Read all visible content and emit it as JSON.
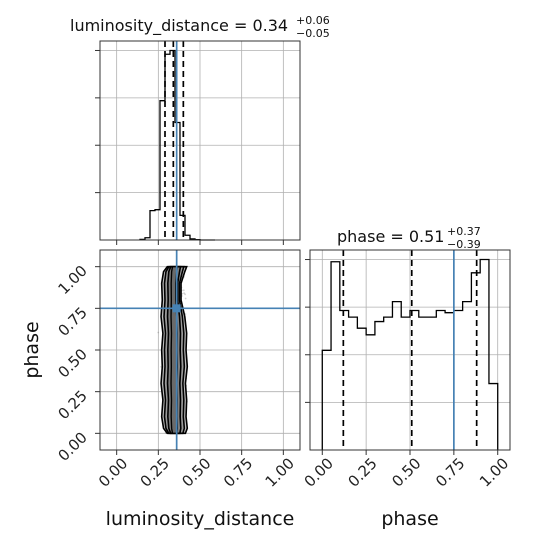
{
  "chart_data": {
    "type": "corner",
    "parameters": [
      "luminosity_distance",
      "phase"
    ],
    "truths": {
      "luminosity_distance": 0.36,
      "phase": 0.75
    },
    "truth_color": "#4682b4",
    "line_color": "#000000",
    "panels": [
      {
        "panel": "hist-luminosity_distance",
        "type": "step-histogram",
        "param": "luminosity_distance",
        "title": {
          "main": "luminosity_distance = 0.34",
          "sup": "+0.06",
          "sub": "−0.05"
        },
        "xlim": [
          -0.1,
          1.1
        ],
        "bin_edges": [
          0.14,
          0.17,
          0.2,
          0.23,
          0.26,
          0.29,
          0.32,
          0.35,
          0.38,
          0.41,
          0.44,
          0.47,
          0.5,
          0.53,
          0.56,
          0.59
        ],
        "counts": [
          0.003,
          0.012,
          0.155,
          0.16,
          0.735,
          0.98,
          1.0,
          0.62,
          0.13,
          0.025,
          0.006,
          0.002,
          0.0,
          0.0,
          0.0
        ],
        "quantiles": [
          0.29,
          0.34,
          0.4
        ],
        "x_ticks": [
          0.0,
          0.25,
          0.5,
          0.75,
          1.0
        ],
        "grid": true
      },
      {
        "panel": "2d-luminosity_distance-phase",
        "type": "contour-2d",
        "x_param": "luminosity_distance",
        "y_param": "phase",
        "xlim": [
          -0.1,
          1.1
        ],
        "ylim": [
          -0.1,
          1.1
        ],
        "x_ticks": [
          "0.00",
          "0.25",
          "0.50",
          "0.75",
          "1.00"
        ],
        "y_ticks": [
          "0.00",
          "0.25",
          "0.50",
          "0.75",
          "1.00"
        ],
        "xlabel": "luminosity_distance",
        "ylabel": "phase",
        "grid": true
      },
      {
        "panel": "hist-phase",
        "type": "step-histogram",
        "param": "phase",
        "title": {
          "main": "phase = 0.51",
          "sup": "+0.37",
          "sub": "−0.39"
        },
        "xlim": [
          -0.07,
          1.07
        ],
        "bin_edges": [
          0.0,
          0.05,
          0.1,
          0.15,
          0.2,
          0.25,
          0.3,
          0.35,
          0.4,
          0.45,
          0.5,
          0.55,
          0.6,
          0.65,
          0.7,
          0.75,
          0.8,
          0.85,
          0.9,
          0.95,
          1.0
        ],
        "counts": [
          0.45,
          0.85,
          0.63,
          0.6,
          0.55,
          0.52,
          0.58,
          0.6,
          0.67,
          0.6,
          0.63,
          0.6,
          0.6,
          0.63,
          0.62,
          0.63,
          0.67,
          0.8,
          0.86,
          0.3
        ],
        "quantiles": [
          0.12,
          0.51,
          0.88
        ],
        "x_ticks": [
          "0.00",
          "0.25",
          "0.50",
          "0.75",
          "1.00"
        ],
        "xlabel": "phase",
        "grid": true
      }
    ]
  }
}
